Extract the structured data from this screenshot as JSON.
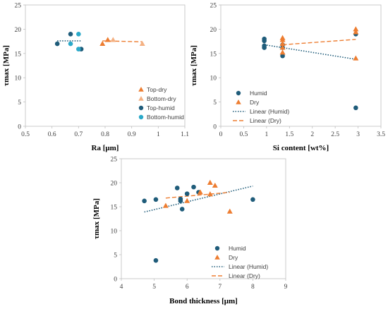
{
  "colors": {
    "top_dry": "#ED7D31",
    "bottom_dry": "#F4B183",
    "top_humid": "#1F5C7A",
    "bottom_humid": "#2AA9C9",
    "humid": "#1F5C7A",
    "dry": "#ED7D31"
  },
  "chart_data": [
    {
      "type": "scatter",
      "xlabel": "Ra [μm]",
      "ylabel": "τmax [MPa]",
      "xlim": [
        0.5,
        1.1
      ],
      "ylim": [
        0,
        25
      ],
      "xticks": [
        "0.5",
        "0.6",
        "0.7",
        "0.8",
        "0.9",
        "1",
        "1.1"
      ],
      "yticks": [
        "0",
        "5",
        "10",
        "15",
        "20",
        "25"
      ],
      "legend_position": "bottom-right",
      "series": [
        {
          "name": "Top-dry",
          "marker": "triangle",
          "color": "#ED7D31",
          "x": [
            0.79,
            0.81
          ],
          "y": [
            17.0,
            17.8
          ]
        },
        {
          "name": "Bottom-dry",
          "marker": "triangle",
          "color": "#F4B183",
          "x": [
            0.83,
            0.94
          ],
          "y": [
            17.8,
            17.0
          ]
        },
        {
          "name": "Top-humid",
          "marker": "circle",
          "color": "#1F5C7A",
          "x": [
            0.62,
            0.67,
            0.71
          ],
          "y": [
            17.0,
            19.0,
            15.9
          ]
        },
        {
          "name": "Bottom-humid",
          "marker": "circle",
          "color": "#2AA9C9",
          "x": [
            0.67,
            0.7,
            0.7
          ],
          "y": [
            17.0,
            19.0,
            15.9
          ]
        }
      ],
      "trendlines": [
        {
          "style": "dotted",
          "color": "#1F5C7A",
          "x": [
            0.62,
            0.71
          ],
          "y": [
            17.6,
            17.6
          ]
        },
        {
          "style": "dashed",
          "color": "#ED7D31",
          "x": [
            0.79,
            0.94
          ],
          "y": [
            17.6,
            17.4
          ]
        }
      ]
    },
    {
      "type": "scatter",
      "xlabel": "Si content [wt%]",
      "ylabel": "τmax [MPa]",
      "xlim": [
        0,
        3.5
      ],
      "ylim": [
        0,
        25
      ],
      "xticks": [
        "0",
        "0.5",
        "1",
        "1.5",
        "2",
        "2.5",
        "3",
        "3.5"
      ],
      "yticks": [
        "0",
        "5",
        "10",
        "15",
        "20",
        "25"
      ],
      "legend_position": "bottom-right",
      "series": [
        {
          "name": "Humid",
          "marker": "circle",
          "color": "#1F5C7A",
          "x": [
            0.95,
            0.95,
            0.95,
            0.95,
            1.35,
            1.35,
            1.35,
            2.95,
            2.95
          ],
          "y": [
            18.0,
            17.6,
            16.6,
            16.2,
            16.8,
            16.2,
            14.5,
            19.0,
            3.8
          ]
        },
        {
          "name": "Dry",
          "marker": "triangle",
          "color": "#ED7D31",
          "x": [
            1.35,
            1.35,
            1.35,
            1.35,
            1.35,
            2.95,
            2.95,
            2.95
          ],
          "y": [
            18.2,
            17.8,
            17.0,
            16.2,
            15.2,
            20.0,
            19.4,
            14.0
          ]
        }
      ],
      "trendlines": [
        {
          "name": "Linear (Humid)",
          "style": "dotted",
          "color": "#1F5C7A",
          "x": [
            0.95,
            2.95
          ],
          "y": [
            16.8,
            13.8
          ]
        },
        {
          "name": "Linear (Dry)",
          "style": "dashed",
          "color": "#ED7D31",
          "x": [
            1.35,
            2.95
          ],
          "y": [
            16.8,
            17.9
          ]
        }
      ]
    },
    {
      "type": "scatter",
      "xlabel": "Bond thickness [μm]",
      "ylabel": "τmax [MPa]",
      "xlim": [
        4,
        9
      ],
      "ylim": [
        0,
        25
      ],
      "xticks": [
        "4",
        "5",
        "6",
        "7",
        "8",
        "9"
      ],
      "yticks": [
        "0",
        "5",
        "10",
        "15",
        "20",
        "25"
      ],
      "legend_position": "bottom-right",
      "series": [
        {
          "name": "Humid",
          "marker": "circle",
          "color": "#1F5C7A",
          "x": [
            4.7,
            5.05,
            5.05,
            5.7,
            5.8,
            5.8,
            5.85,
            6.0,
            6.2,
            6.35,
            8.0
          ],
          "y": [
            16.2,
            16.5,
            3.8,
            18.9,
            16.6,
            16.2,
            14.5,
            17.7,
            19.1,
            18.0,
            16.5
          ]
        },
        {
          "name": "Dry",
          "marker": "triangle",
          "color": "#ED7D31",
          "x": [
            5.35,
            6.0,
            6.4,
            6.7,
            6.7,
            6.85,
            7.3
          ],
          "y": [
            15.2,
            16.2,
            18.0,
            20.0,
            17.6,
            19.4,
            14.0
          ]
        }
      ],
      "trendlines": [
        {
          "name": "Linear (Humid)",
          "style": "dotted",
          "color": "#1F5C7A",
          "x": [
            4.7,
            8.0
          ],
          "y": [
            13.9,
            19.3
          ]
        },
        {
          "name": "Linear (Dry)",
          "style": "dashed",
          "color": "#ED7D31",
          "x": [
            5.35,
            7.3
          ],
          "y": [
            16.8,
            18.0
          ]
        }
      ]
    }
  ],
  "legends": [
    [
      "Top-dry",
      "Bottom-dry",
      "Top-humid",
      "Bottom-humid"
    ],
    [
      "Humid",
      "Dry",
      "Linear (Humid)",
      "Linear (Dry)"
    ],
    [
      "Humid",
      "Dry",
      "Linear (Humid)",
      "Linear (Dry)"
    ]
  ]
}
